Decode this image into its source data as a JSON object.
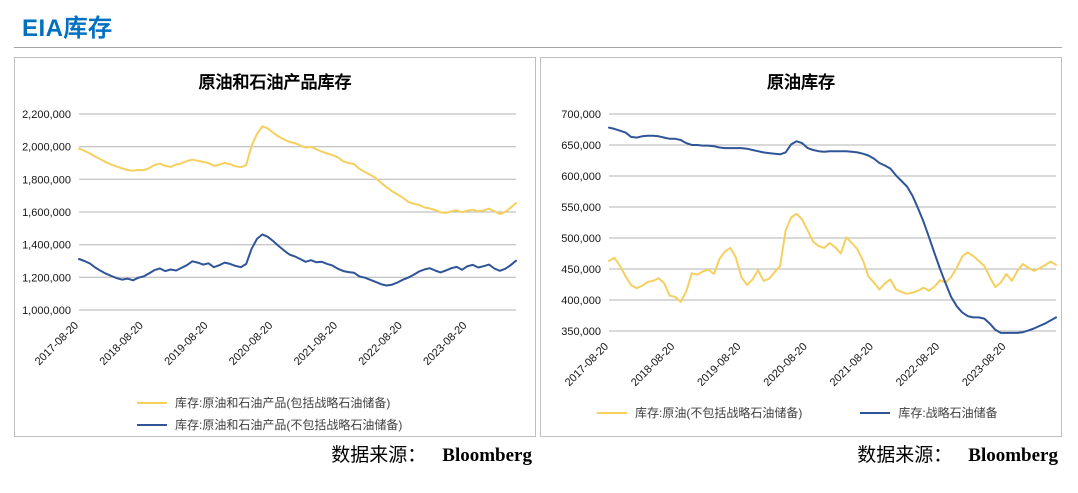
{
  "page": {
    "title": "EIA库存",
    "accent_color": "#0070C0"
  },
  "source_note": {
    "label": "数据来源：",
    "value": "Bloomberg"
  },
  "colors": {
    "yellow": "#F5D05F",
    "blue": "#2F5597",
    "grid": "#b3b3b3"
  },
  "chart_data": [
    {
      "type": "line",
      "title": "原油和石油产品库存",
      "x_unit": "monthly points from 2017-08-20 to 2024-05",
      "x_tick_labels": [
        "2017-08-20",
        "2018-08-20",
        "2019-08-20",
        "2020-08-20",
        "2021-08-20",
        "2022-08-20",
        "2023-08-20"
      ],
      "x_tick_indices": [
        0,
        12,
        24,
        36,
        48,
        60,
        72
      ],
      "ylim": [
        1000000,
        2200000
      ],
      "y_step": 200000,
      "y_tick_labels": [
        "2,200,000",
        "2,000,000",
        "1,800,000",
        "1,600,000",
        "1,400,000",
        "1,200,000",
        "1,000,000"
      ],
      "grid": true,
      "legend_position": "bottom-left-column",
      "series": [
        {
          "name": "库存:原油和石油产品(包括战略石油储备)",
          "color_key": "yellow",
          "values": [
            1988000,
            1975000,
            1958000,
            1940000,
            1922000,
            1905000,
            1890000,
            1878000,
            1867000,
            1857000,
            1852000,
            1858000,
            1856000,
            1868000,
            1888000,
            1896000,
            1882000,
            1876000,
            1890000,
            1898000,
            1912000,
            1920000,
            1914000,
            1906000,
            1900000,
            1882000,
            1890000,
            1900000,
            1893000,
            1880000,
            1874000,
            1888000,
            2005000,
            2078000,
            2125000,
            2112000,
            2085000,
            2062000,
            2044000,
            2030000,
            2022000,
            2008000,
            1994000,
            2000000,
            1984000,
            1970000,
            1958000,
            1948000,
            1934000,
            1910000,
            1900000,
            1893000,
            1863000,
            1845000,
            1828000,
            1808000,
            1778000,
            1752000,
            1728000,
            1708000,
            1688000,
            1663000,
            1650000,
            1644000,
            1628000,
            1622000,
            1612000,
            1598000,
            1594000,
            1604000,
            1610000,
            1598000,
            1608000,
            1614000,
            1604000,
            1610000,
            1620000,
            1604000,
            1588000,
            1600000,
            1626000,
            1655000
          ]
        },
        {
          "name": "库存:原油和石油产品(不包括战略石油储备)",
          "color_key": "blue",
          "values": [
            1312000,
            1300000,
            1285000,
            1260000,
            1240000,
            1222000,
            1208000,
            1195000,
            1186000,
            1192000,
            1182000,
            1198000,
            1206000,
            1224000,
            1244000,
            1254000,
            1238000,
            1248000,
            1242000,
            1258000,
            1274000,
            1298000,
            1290000,
            1278000,
            1286000,
            1262000,
            1274000,
            1290000,
            1282000,
            1270000,
            1262000,
            1282000,
            1375000,
            1435000,
            1463000,
            1448000,
            1422000,
            1392000,
            1365000,
            1340000,
            1328000,
            1312000,
            1295000,
            1305000,
            1292000,
            1295000,
            1282000,
            1272000,
            1252000,
            1238000,
            1232000,
            1228000,
            1205000,
            1198000,
            1185000,
            1172000,
            1158000,
            1150000,
            1155000,
            1168000,
            1185000,
            1198000,
            1215000,
            1235000,
            1248000,
            1256000,
            1242000,
            1230000,
            1242000,
            1256000,
            1264000,
            1246000,
            1268000,
            1276000,
            1260000,
            1268000,
            1278000,
            1254000,
            1240000,
            1252000,
            1274000,
            1302000
          ]
        }
      ]
    },
    {
      "type": "line",
      "title": "原油库存",
      "x_unit": "monthly points from 2017-08-20 to 2024-05",
      "x_tick_labels": [
        "2017-08-20",
        "2018-08-20",
        "2019-08-20",
        "2020-08-20",
        "2021-08-20",
        "2022-08-20",
        "2023-08-20"
      ],
      "x_tick_indices": [
        0,
        12,
        24,
        36,
        48,
        60,
        72
      ],
      "ylim": [
        350000,
        700000
      ],
      "y_step": 50000,
      "y_tick_labels": [
        "700,000",
        "650,000",
        "600,000",
        "550,000",
        "500,000",
        "450,000",
        "400,000",
        "350,000"
      ],
      "grid": true,
      "legend_position": "bottom-row",
      "series": [
        {
          "name": "库存:原油(不包括战略石油储备)",
          "color_key": "yellow",
          "values": [
            463000,
            468000,
            455000,
            438000,
            424000,
            419000,
            423000,
            429000,
            431000,
            435000,
            427000,
            407000,
            405000,
            397000,
            414000,
            443000,
            441000,
            446000,
            449000,
            442000,
            466000,
            478000,
            484000,
            468000,
            437000,
            424000,
            433000,
            448000,
            431000,
            434000,
            445000,
            455000,
            512000,
            533000,
            539000,
            530000,
            512000,
            494000,
            487000,
            484000,
            492000,
            485000,
            475000,
            501000,
            492000,
            482000,
            464000,
            438000,
            428000,
            417000,
            427000,
            433000,
            417000,
            413000,
            410000,
            412000,
            415000,
            420000,
            415000,
            422000,
            432000,
            428000,
            437000,
            452000,
            470000,
            477000,
            471000,
            463000,
            455000,
            437000,
            421000,
            428000,
            442000,
            431000,
            447000,
            458000,
            452000,
            447000,
            451000,
            456000,
            462000,
            457000
          ]
        },
        {
          "name": "库存:战略石油储备",
          "color_key": "blue",
          "values": [
            678000,
            676000,
            673000,
            670000,
            663000,
            662000,
            664000,
            665000,
            665000,
            664000,
            662000,
            660000,
            660000,
            658000,
            653000,
            650000,
            650000,
            649000,
            649000,
            648000,
            646000,
            645000,
            645000,
            645000,
            645000,
            644000,
            642000,
            640000,
            638000,
            637000,
            636000,
            635000,
            638000,
            651000,
            656000,
            653000,
            645000,
            642000,
            640000,
            639000,
            640000,
            640000,
            640000,
            640000,
            639000,
            638000,
            636000,
            633000,
            628000,
            621000,
            617000,
            612000,
            601000,
            592000,
            583000,
            568000,
            548000,
            526000,
            501000,
            475000,
            450000,
            427000,
            405000,
            390000,
            380000,
            374000,
            372000,
            372000,
            370000,
            362000,
            352000,
            347000,
            347000,
            347000,
            347000,
            348000,
            351000,
            354000,
            358000,
            362000,
            367000,
            372000
          ]
        }
      ]
    }
  ]
}
